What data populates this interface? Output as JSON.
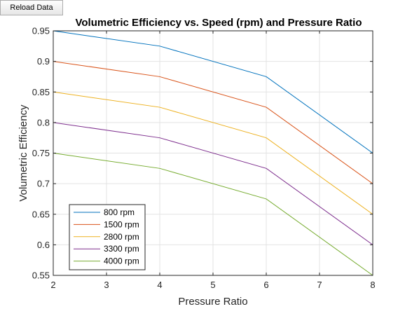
{
  "toolbar": {
    "reload_label": "Reload Data"
  },
  "chart_data": {
    "type": "line",
    "title": "Volumetric Efficiency vs. Speed (rpm) and Pressure Ratio",
    "xlabel": "Pressure Ratio",
    "ylabel": "Volumetric Efficiency",
    "xlim": [
      2,
      8
    ],
    "ylim": [
      0.55,
      0.95
    ],
    "xticks": [
      2,
      3,
      4,
      5,
      6,
      7,
      8
    ],
    "yticks": [
      0.55,
      0.6,
      0.65,
      0.7,
      0.75,
      0.8,
      0.85,
      0.9,
      0.95
    ],
    "x": [
      2,
      4,
      6,
      8
    ],
    "grid": true,
    "legend_position": "bottom-left",
    "series": [
      {
        "name": "800 rpm",
        "color": "#0072BD",
        "values": [
          0.95,
          0.925,
          0.875,
          0.75
        ]
      },
      {
        "name": "1500 rpm",
        "color": "#D95319",
        "values": [
          0.9,
          0.875,
          0.825,
          0.7
        ]
      },
      {
        "name": "2800 rpm",
        "color": "#EDB120",
        "values": [
          0.85,
          0.825,
          0.775,
          0.65
        ]
      },
      {
        "name": "3300 rpm",
        "color": "#7E2F8E",
        "values": [
          0.8,
          0.775,
          0.725,
          0.6
        ]
      },
      {
        "name": "4000 rpm",
        "color": "#77AC30",
        "values": [
          0.75,
          0.725,
          0.675,
          0.55
        ]
      }
    ]
  }
}
